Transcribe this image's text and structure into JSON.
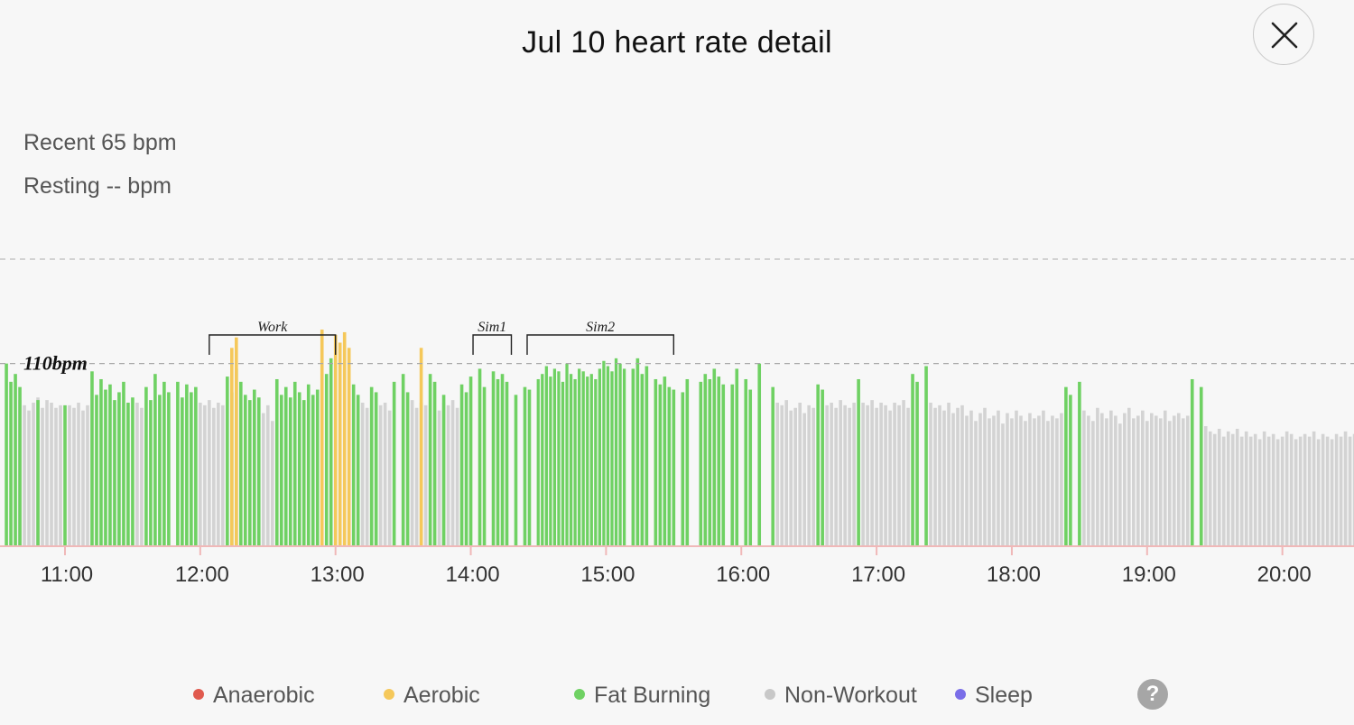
{
  "header": {
    "title": "Jul 10 heart rate detail"
  },
  "stats": {
    "recent": "Recent 65 bpm",
    "resting": "Resting -- bpm"
  },
  "icons": {
    "close": "close-icon",
    "help": "help-icon"
  },
  "help_label": "?",
  "colors": {
    "background": "#f7f7f7",
    "anaerobic": "#e05a4e",
    "aerobic": "#f5c85a",
    "fat_burning": "#6fd163",
    "non_workout": "#d3d3d3",
    "sleep": "#7a6ee8",
    "axis": "#f0b8b8",
    "gridline": "#bdbdbd"
  },
  "legend": [
    {
      "key": "anaerobic",
      "label": "Anaerobic",
      "color": "#e05a4e"
    },
    {
      "key": "aerobic",
      "label": "Aerobic",
      "color": "#f5c85a"
    },
    {
      "key": "fat_burning",
      "label": "Fat Burning",
      "color": "#6fd163"
    },
    {
      "key": "non_workout",
      "label": "Non-Workout",
      "color": "#c8c8c8"
    },
    {
      "key": "sleep",
      "label": "Sleep",
      "color": "#7a6ee8"
    }
  ],
  "chart_data": {
    "type": "bar",
    "x_unit": "time of day",
    "x_range": [
      "10:33",
      "20:35"
    ],
    "y_range_bpm": [
      40,
      150
    ],
    "y_unit": "bpm",
    "grid": "dashed horizontal reference lines",
    "x_ticks": [
      "11:00",
      "12:00",
      "13:00",
      "14:00",
      "15:00",
      "16:00",
      "17:00",
      "18:00",
      "19:00",
      "20:00"
    ],
    "reference_line": {
      "value": 110,
      "label": "110bpm"
    },
    "zone_annotations": [
      {
        "label": "Work",
        "start": "12:04",
        "end": "13:00"
      },
      {
        "label": "Sim1",
        "start": "14:01",
        "end": "14:18"
      },
      {
        "label": "Sim2",
        "start": "14:25",
        "end": "15:30"
      }
    ],
    "series": [
      {
        "name": "Fat Burning",
        "segments": [
          {
            "start": "10:33",
            "end": "10:41",
            "values": [
              110,
              103,
              106,
              101
            ]
          },
          {
            "start": "10:47",
            "end": "10:49",
            "values": [
              96
            ]
          },
          {
            "start": "10:59",
            "end": "11:01",
            "values": [
              94
            ]
          },
          {
            "start": "11:11",
            "end": "11:31",
            "values": [
              107,
              98,
              104,
              100,
              102,
              96,
              99,
              103,
              95,
              97
            ]
          },
          {
            "start": "11:35",
            "end": "11:47",
            "values": [
              101,
              96,
              106,
              98,
              103,
              99
            ]
          },
          {
            "start": "11:49",
            "end": "11:59",
            "values": [
              103,
              97,
              102,
              99,
              101
            ]
          },
          {
            "start": "12:11",
            "end": "12:27",
            "values": [
              105,
              99,
              108,
              103,
              98,
              96,
              100,
              97
            ]
          },
          {
            "start": "12:33",
            "end": "12:53",
            "values": [
              104,
              98,
              101,
              97,
              103,
              99,
              96,
              102,
              98,
              100
            ]
          },
          {
            "start": "12:55",
            "end": "12:59",
            "values": [
              106,
              112
            ]
          },
          {
            "start": "13:07",
            "end": "13:11",
            "values": [
              102,
              98
            ]
          },
          {
            "start": "13:15",
            "end": "13:19",
            "values": [
              101,
              99
            ]
          },
          {
            "start": "13:25",
            "end": "13:27",
            "values": [
              103
            ]
          },
          {
            "start": "13:29",
            "end": "13:33",
            "values": [
              106,
              99
            ]
          },
          {
            "start": "13:41",
            "end": "13:45",
            "values": [
              106,
              103
            ]
          },
          {
            "start": "13:47",
            "end": "13:49",
            "values": [
              98
            ]
          },
          {
            "start": "13:55",
            "end": "14:01",
            "values": [
              102,
              99,
              105
            ]
          },
          {
            "start": "14:03",
            "end": "14:07",
            "values": [
              108,
              101
            ]
          },
          {
            "start": "14:09",
            "end": "14:17",
            "values": [
              107,
              104,
              106,
              103
            ]
          },
          {
            "start": "14:19",
            "end": "14:21",
            "values": [
              98
            ]
          },
          {
            "start": "14:23",
            "end": "14:27",
            "values": [
              101,
              100
            ]
          },
          {
            "start": "14:29",
            "end": "15:09",
            "values": [
              104,
              106,
              109,
              105,
              108,
              107,
              103,
              110,
              106,
              104,
              108,
              107,
              105,
              106,
              104,
              108,
              111,
              109,
              107,
              112,
              110,
              108
            ]
          },
          {
            "start": "15:11",
            "end": "15:19",
            "values": [
              108,
              112,
              106,
              109
            ]
          },
          {
            "start": "15:21",
            "end": "15:31",
            "values": [
              104,
              102,
              105,
              101,
              100
            ]
          },
          {
            "start": "15:33",
            "end": "15:37",
            "values": [
              99,
              104
            ]
          },
          {
            "start": "15:41",
            "end": "15:53",
            "values": [
              103,
              106,
              104,
              108,
              105,
              102
            ]
          },
          {
            "start": "15:55",
            "end": "15:59",
            "values": [
              102,
              108
            ]
          },
          {
            "start": "16:01",
            "end": "16:05",
            "values": [
              104,
              100
            ]
          },
          {
            "start": "16:07",
            "end": "16:09",
            "values": [
              110
            ]
          },
          {
            "start": "16:13",
            "end": "16:15",
            "values": [
              101
            ]
          },
          {
            "start": "16:33",
            "end": "16:37",
            "values": [
              102,
              100
            ]
          },
          {
            "start": "16:51",
            "end": "16:53",
            "values": [
              104
            ]
          },
          {
            "start": "17:15",
            "end": "17:19",
            "values": [
              106,
              103
            ]
          },
          {
            "start": "17:21",
            "end": "17:23",
            "values": [
              109
            ]
          },
          {
            "start": "18:23",
            "end": "18:27",
            "values": [
              101,
              98
            ]
          },
          {
            "start": "18:29",
            "end": "18:31",
            "values": [
              103
            ]
          },
          {
            "start": "19:19",
            "end": "19:21",
            "values": [
              104
            ]
          },
          {
            "start": "19:23",
            "end": "19:25",
            "values": [
              101
            ]
          },
          {
            "start": "20:33",
            "end": "20:35",
            "values": [
              106
            ]
          }
        ]
      },
      {
        "name": "Aerobic",
        "segments": [
          {
            "start": "12:13",
            "end": "12:17",
            "values": [
              116,
              120
            ]
          },
          {
            "start": "12:53",
            "end": "12:55",
            "values": [
              123
            ]
          },
          {
            "start": "12:59",
            "end": "13:07",
            "values": [
              121,
              118,
              122,
              116
            ]
          },
          {
            "start": "13:37",
            "end": "13:39",
            "values": [
              116
            ]
          }
        ]
      },
      {
        "name": "Non-Workout",
        "segments": [
          {
            "start": "10:39",
            "end": "10:49",
            "values": [
              96,
              94,
              92,
              95,
              97
            ]
          },
          {
            "start": "10:49",
            "end": "10:59",
            "values": [
              93,
              96,
              95,
              93,
              94
            ]
          },
          {
            "start": "11:01",
            "end": "11:11",
            "values": [
              94,
              93,
              95,
              92,
              94
            ]
          },
          {
            "start": "11:31",
            "end": "11:35",
            "values": [
              95,
              93
            ]
          },
          {
            "start": "11:59",
            "end": "12:11",
            "values": [
              95,
              94,
              96,
              93,
              95,
              94
            ]
          },
          {
            "start": "12:27",
            "end": "12:33",
            "values": [
              91,
              94,
              88
            ]
          },
          {
            "start": "13:11",
            "end": "13:15",
            "values": [
              95,
              93
            ]
          },
          {
            "start": "13:19",
            "end": "13:25",
            "values": [
              94,
              95,
              92
            ]
          },
          {
            "start": "13:33",
            "end": "13:41",
            "values": [
              96,
              93,
              95,
              94
            ]
          },
          {
            "start": "13:45",
            "end": "13:55",
            "values": [
              92,
              95,
              94,
              96,
              93
            ]
          },
          {
            "start": "16:15",
            "end": "16:33",
            "values": [
              95,
              94,
              96,
              92,
              93,
              95,
              91,
              94,
              93
            ]
          },
          {
            "start": "16:37",
            "end": "16:51",
            "values": [
              94,
              95,
              93,
              96,
              94,
              93,
              95
            ]
          },
          {
            "start": "16:53",
            "end": "17:15",
            "values": [
              95,
              94,
              96,
              93,
              95,
              94,
              92,
              95,
              94,
              96,
              93
            ]
          },
          {
            "start": "17:23",
            "end": "17:39",
            "values": [
              95,
              93,
              94,
              92,
              95,
              91,
              93,
              94
            ]
          },
          {
            "start": "17:39",
            "end": "18:23",
            "values": [
              90,
              92,
              88,
              91,
              93,
              89,
              90,
              92,
              87,
              91,
              89,
              92,
              90,
              88,
              91,
              89,
              90,
              92,
              88,
              90,
              89,
              91
            ]
          },
          {
            "start": "18:31",
            "end": "19:19",
            "values": [
              92,
              90,
              88,
              93,
              91,
              89,
              92,
              90,
              87,
              91,
              93,
              89,
              90,
              92,
              88,
              91,
              90,
              89,
              92,
              88,
              90,
              91,
              89,
              90
            ]
          },
          {
            "start": "19:25",
            "end": "19:45",
            "values": [
              86,
              84,
              83,
              85,
              82,
              84,
              83,
              85,
              82,
              84
            ]
          },
          {
            "start": "19:45",
            "end": "20:33",
            "values": [
              82,
              83,
              81,
              84,
              82,
              83,
              81,
              82,
              84,
              83,
              81,
              82,
              83,
              82,
              84,
              81,
              83,
              82,
              81,
              83,
              82,
              84,
              82,
              83
            ]
          }
        ]
      }
    ]
  }
}
